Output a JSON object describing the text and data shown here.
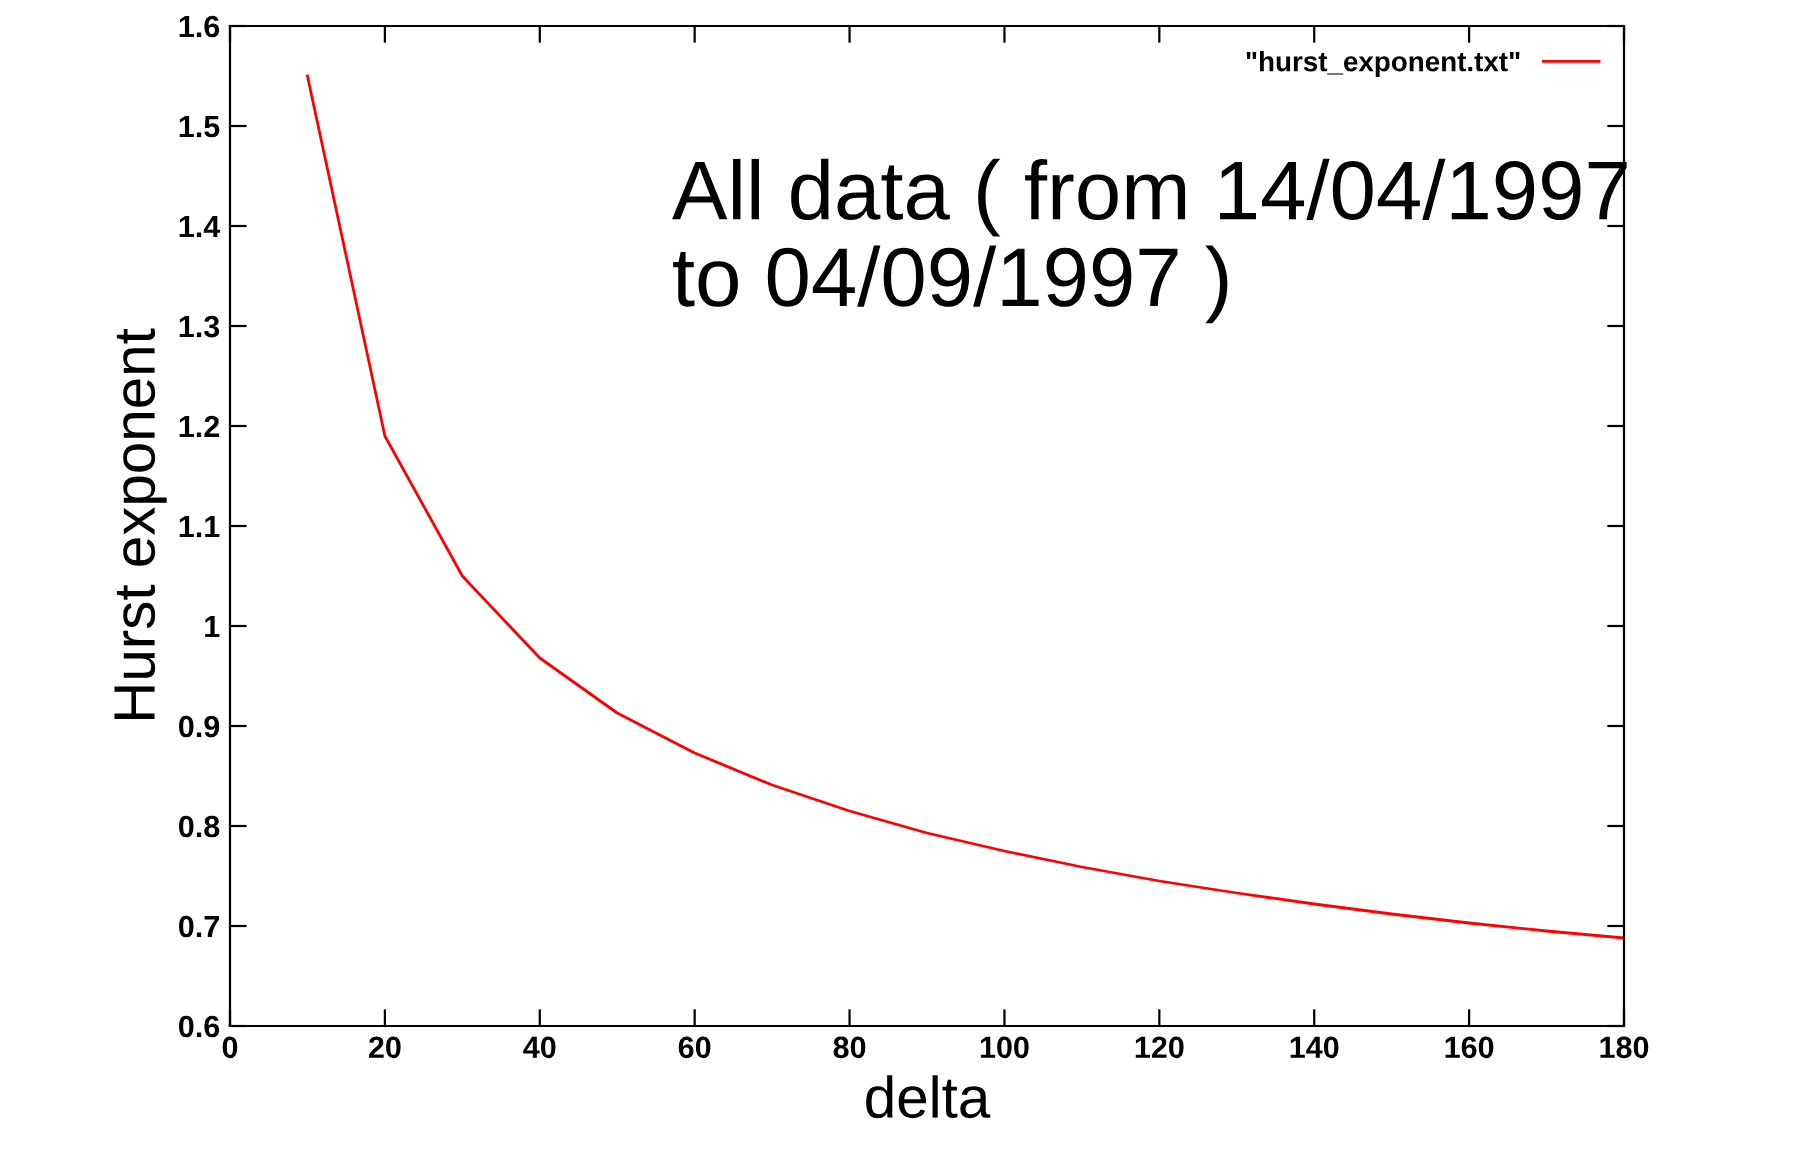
{
  "chart_data": {
    "type": "line",
    "xlabel": "delta",
    "ylabel": "Hurst exponent",
    "annotations": [
      "All data ( from 14/04/1997\nto 04/09/1997 )"
    ],
    "x": [
      10,
      20,
      30,
      40,
      50,
      60,
      70,
      80,
      90,
      100,
      110,
      120,
      130,
      140,
      150,
      160,
      170,
      180
    ],
    "series": [
      {
        "name": "\"hurst_exponent.txt\"",
        "color": "#ff0000",
        "values": [
          1.55,
          1.19,
          1.05,
          0.968,
          0.913,
          0.873,
          0.841,
          0.815,
          0.793,
          0.775,
          0.759,
          0.745,
          0.733,
          0.722,
          0.712,
          0.703,
          0.695,
          0.688
        ]
      }
    ],
    "xlim": [
      0,
      180
    ],
    "xticks": [
      0,
      20,
      40,
      60,
      80,
      100,
      120,
      140,
      160,
      180
    ],
    "ylim": [
      0.6,
      1.6
    ],
    "yticks": [
      0.6,
      0.7,
      0.8,
      0.9,
      1,
      1.1,
      1.2,
      1.3,
      1.4,
      1.5,
      1.6
    ],
    "legend": "top right",
    "grid": false,
    "marker": "none",
    "line_style": "solid"
  }
}
